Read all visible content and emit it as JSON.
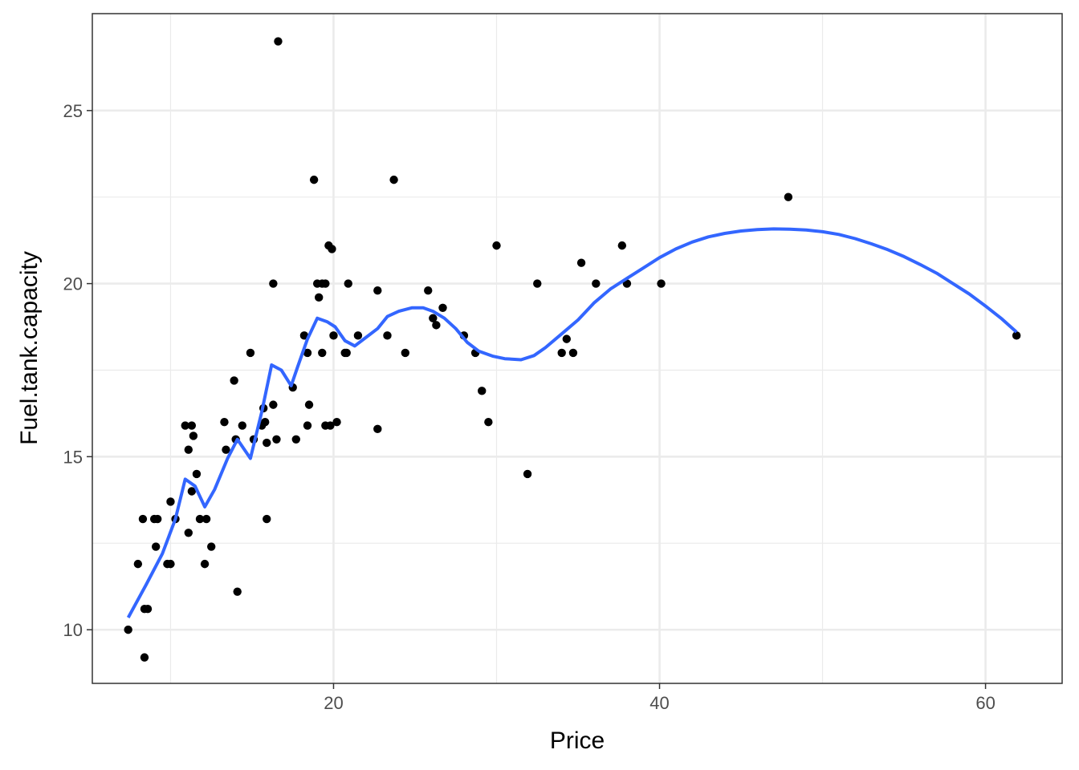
{
  "chart_data": {
    "type": "scatter",
    "xlabel": "Price",
    "ylabel": "Fuel.tank.capacity",
    "xlim": [
      5.2,
      64.7
    ],
    "ylim": [
      8.45,
      27.8
    ],
    "x_ticks": [
      20,
      40,
      60
    ],
    "x_minor_ticks": [
      10,
      30,
      50
    ],
    "y_ticks": [
      10,
      15,
      20,
      25
    ],
    "y_minor_ticks": [
      12.5,
      17.5,
      22.5
    ],
    "x_tick_labels": [
      "20",
      "40",
      "60"
    ],
    "y_tick_labels": [
      "10",
      "15",
      "20",
      "25"
    ],
    "grid": true,
    "legend": "none",
    "colors": {
      "points": "#000000",
      "smooth": "#3366FF",
      "grid": "#EBEBEB",
      "panel_border": "#333333"
    },
    "points": [
      [
        7.4,
        10.0
      ],
      [
        8.0,
        11.9
      ],
      [
        8.3,
        13.2
      ],
      [
        8.4,
        10.6
      ],
      [
        8.4,
        9.2
      ],
      [
        8.6,
        10.6
      ],
      [
        9.0,
        13.2
      ],
      [
        9.1,
        12.4
      ],
      [
        9.2,
        13.2
      ],
      [
        9.8,
        11.9
      ],
      [
        10.0,
        13.7
      ],
      [
        10.0,
        11.9
      ],
      [
        10.3,
        13.2
      ],
      [
        10.9,
        15.9
      ],
      [
        11.1,
        12.8
      ],
      [
        11.1,
        15.2
      ],
      [
        11.3,
        15.9
      ],
      [
        11.3,
        14.0
      ],
      [
        11.4,
        15.6
      ],
      [
        11.6,
        14.5
      ],
      [
        11.8,
        13.2
      ],
      [
        12.1,
        11.9
      ],
      [
        12.2,
        13.2
      ],
      [
        12.5,
        12.4
      ],
      [
        13.3,
        16.0
      ],
      [
        13.4,
        15.2
      ],
      [
        13.9,
        17.2
      ],
      [
        14.0,
        15.5
      ],
      [
        14.1,
        11.1
      ],
      [
        14.4,
        15.9
      ],
      [
        14.9,
        18.0
      ],
      [
        15.1,
        15.5
      ],
      [
        15.6,
        15.9
      ],
      [
        15.7,
        16.4
      ],
      [
        15.8,
        16.0
      ],
      [
        15.9,
        15.4
      ],
      [
        15.9,
        13.2
      ],
      [
        16.3,
        16.5
      ],
      [
        16.3,
        20.0
      ],
      [
        16.5,
        15.5
      ],
      [
        16.6,
        27.0
      ],
      [
        17.5,
        17.0
      ],
      [
        17.7,
        15.5
      ],
      [
        18.2,
        18.5
      ],
      [
        18.4,
        18.0
      ],
      [
        18.4,
        15.9
      ],
      [
        18.5,
        16.5
      ],
      [
        18.8,
        23.0
      ],
      [
        19.0,
        20.0
      ],
      [
        19.1,
        19.6
      ],
      [
        19.3,
        18.0
      ],
      [
        19.3,
        20.0
      ],
      [
        19.5,
        15.9
      ],
      [
        19.5,
        20.0
      ],
      [
        19.7,
        21.1
      ],
      [
        19.8,
        15.9
      ],
      [
        19.9,
        21.0
      ],
      [
        20.0,
        18.5
      ],
      [
        20.2,
        16.0
      ],
      [
        20.7,
        18.0
      ],
      [
        20.8,
        18.0
      ],
      [
        20.9,
        20.0
      ],
      [
        21.5,
        18.5
      ],
      [
        22.7,
        19.8
      ],
      [
        22.7,
        15.8
      ],
      [
        23.3,
        18.5
      ],
      [
        23.7,
        23.0
      ],
      [
        24.4,
        18.0
      ],
      [
        25.8,
        19.8
      ],
      [
        26.1,
        19.0
      ],
      [
        26.3,
        18.8
      ],
      [
        26.7,
        19.3
      ],
      [
        28.0,
        18.5
      ],
      [
        28.7,
        18.0
      ],
      [
        29.1,
        16.9
      ],
      [
        29.5,
        16.0
      ],
      [
        30.0,
        21.1
      ],
      [
        31.9,
        14.5
      ],
      [
        32.5,
        20.0
      ],
      [
        34.0,
        18.0
      ],
      [
        34.3,
        18.4
      ],
      [
        34.7,
        18.0
      ],
      [
        35.2,
        20.6
      ],
      [
        36.1,
        20.0
      ],
      [
        37.7,
        21.1
      ],
      [
        38.0,
        20.0
      ],
      [
        40.1,
        20.0
      ],
      [
        47.9,
        22.5
      ],
      [
        61.9,
        18.5
      ]
    ],
    "smooth_line": [
      [
        7.4,
        10.35
      ],
      [
        8.5,
        11.3
      ],
      [
        9.5,
        12.2
      ],
      [
        10.3,
        13.2
      ],
      [
        10.9,
        14.35
      ],
      [
        11.5,
        14.15
      ],
      [
        12.1,
        13.55
      ],
      [
        12.7,
        14.05
      ],
      [
        13.5,
        14.95
      ],
      [
        14.1,
        15.5
      ],
      [
        14.9,
        14.95
      ],
      [
        15.6,
        16.3
      ],
      [
        16.2,
        17.65
      ],
      [
        16.8,
        17.5
      ],
      [
        17.4,
        17.05
      ],
      [
        17.8,
        17.6
      ],
      [
        18.4,
        18.4
      ],
      [
        19.0,
        19.0
      ],
      [
        19.6,
        18.9
      ],
      [
        20.1,
        18.75
      ],
      [
        20.7,
        18.35
      ],
      [
        21.3,
        18.2
      ],
      [
        22.0,
        18.45
      ],
      [
        22.7,
        18.7
      ],
      [
        23.3,
        19.05
      ],
      [
        24.0,
        19.2
      ],
      [
        24.8,
        19.3
      ],
      [
        25.5,
        19.3
      ],
      [
        26.1,
        19.2
      ],
      [
        26.8,
        19.0
      ],
      [
        27.5,
        18.7
      ],
      [
        28.2,
        18.3
      ],
      [
        28.9,
        18.05
      ],
      [
        29.8,
        17.9
      ],
      [
        30.5,
        17.83
      ],
      [
        31.5,
        17.8
      ],
      [
        32.3,
        17.92
      ],
      [
        33.0,
        18.15
      ],
      [
        34.0,
        18.55
      ],
      [
        35.0,
        18.95
      ],
      [
        36.0,
        19.45
      ],
      [
        37.0,
        19.85
      ],
      [
        38.0,
        20.15
      ],
      [
        39.0,
        20.45
      ],
      [
        40.0,
        20.75
      ],
      [
        41.0,
        21.0
      ],
      [
        42.0,
        21.2
      ],
      [
        43.0,
        21.35
      ],
      [
        44.0,
        21.45
      ],
      [
        45.0,
        21.52
      ],
      [
        46.0,
        21.56
      ],
      [
        47.0,
        21.58
      ],
      [
        48.0,
        21.57
      ],
      [
        49.0,
        21.55
      ],
      [
        50.0,
        21.5
      ],
      [
        51.0,
        21.42
      ],
      [
        52.0,
        21.3
      ],
      [
        53.0,
        21.15
      ],
      [
        54.0,
        20.98
      ],
      [
        55.0,
        20.78
      ],
      [
        56.0,
        20.55
      ],
      [
        57.0,
        20.3
      ],
      [
        58.0,
        20.0
      ],
      [
        59.0,
        19.7
      ],
      [
        60.0,
        19.35
      ],
      [
        61.0,
        18.98
      ],
      [
        61.9,
        18.6
      ]
    ]
  }
}
